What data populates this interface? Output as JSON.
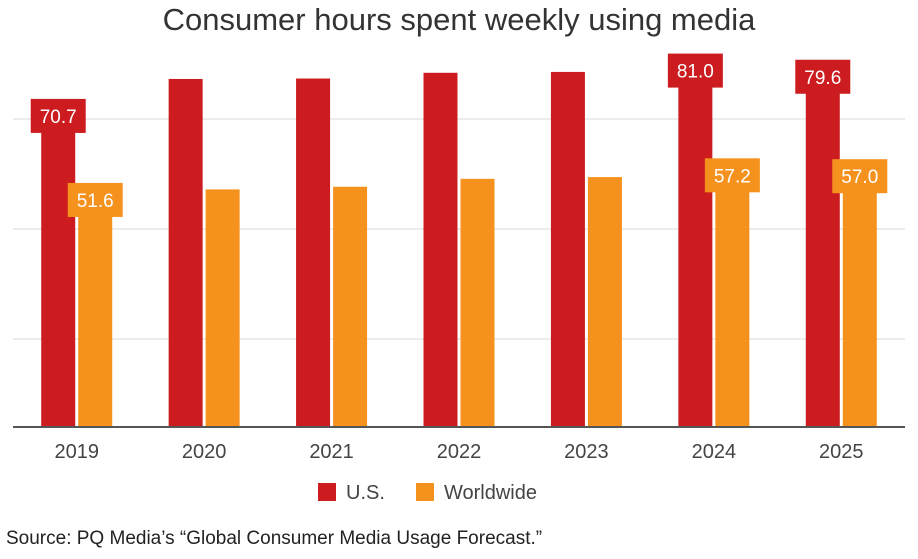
{
  "chart_data": {
    "type": "bar",
    "title": "Consumer hours spent weekly using media",
    "categories": [
      "2019",
      "2020",
      "2021",
      "2022",
      "2023",
      "2024",
      "2025"
    ],
    "series": [
      {
        "name": "U.S.",
        "color": "#cc1c1f",
        "values": [
          70.7,
          79.1,
          79.2,
          80.5,
          80.7,
          81.0,
          79.6
        ],
        "labels": [
          "70.7",
          "",
          "",
          "",
          "",
          "81.0",
          "79.6"
        ]
      },
      {
        "name": "Worldwide",
        "color": "#f5921e",
        "values": [
          51.6,
          54.0,
          54.6,
          56.4,
          56.8,
          57.2,
          57.0
        ],
        "labels": [
          "51.6",
          "",
          "",
          "",
          "",
          "57.2",
          "57.0"
        ]
      }
    ],
    "ylim": [
      0,
      90
    ],
    "gridlines": [
      20,
      45,
      70
    ],
    "grid": true,
    "legend_position": "bottom"
  },
  "footer": {
    "source": "Source: PQ Media’s “Global Consumer Media Usage Forecast.”"
  }
}
